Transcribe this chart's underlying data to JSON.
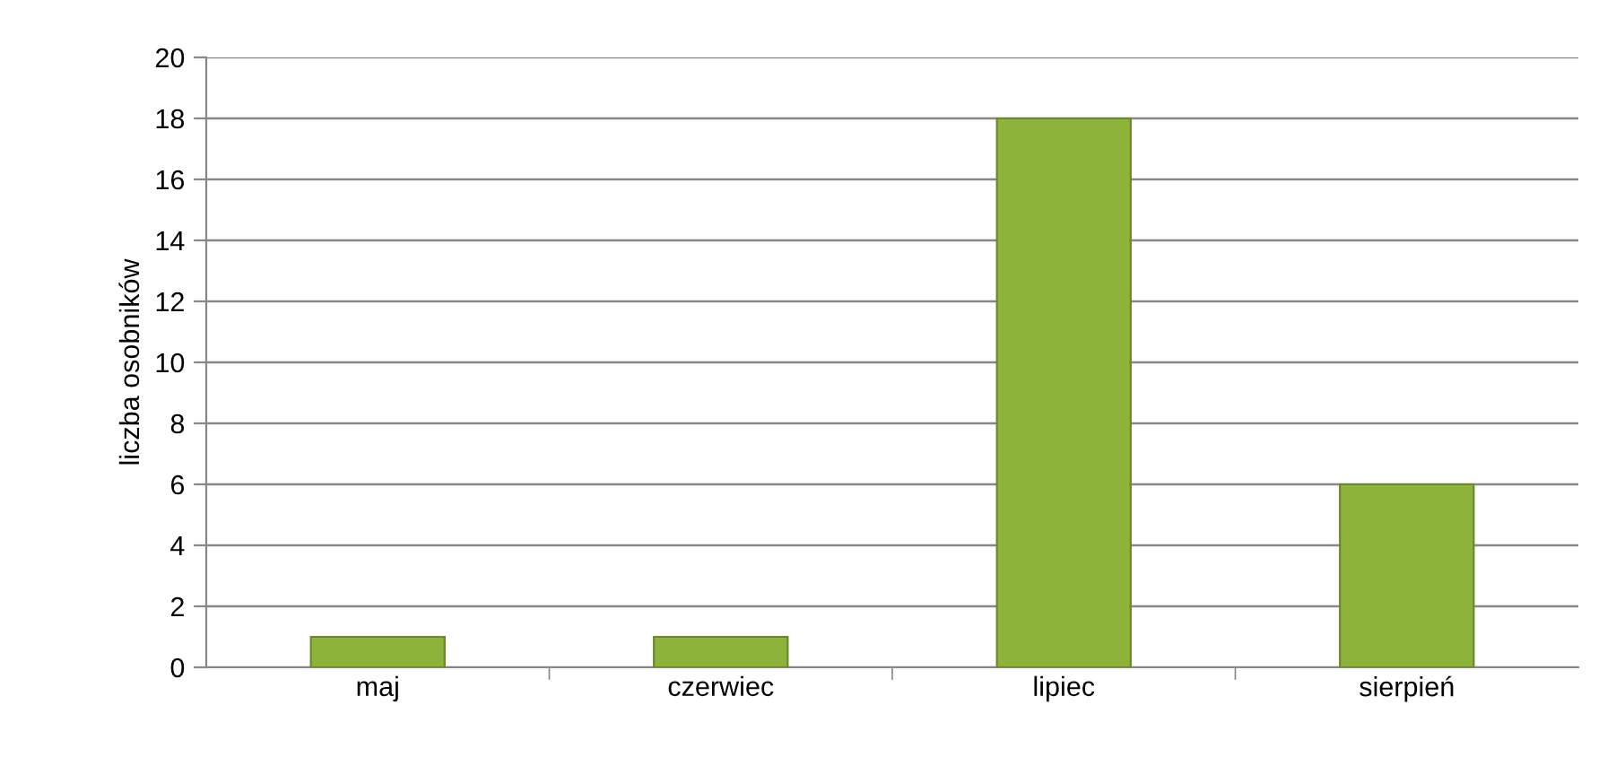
{
  "chart_data": {
    "type": "bar",
    "ylabel": "liczba osobników",
    "categories": [
      "maj",
      "czerwiec",
      "lipiec",
      "sierpień"
    ],
    "values": [
      1,
      1,
      18,
      6
    ],
    "color": "#8db33a",
    "ylim": [
      0,
      20
    ],
    "yticks": [
      0,
      2,
      4,
      6,
      8,
      10,
      12,
      14,
      16,
      18,
      20
    ],
    "grid": "y",
    "legend": false
  }
}
